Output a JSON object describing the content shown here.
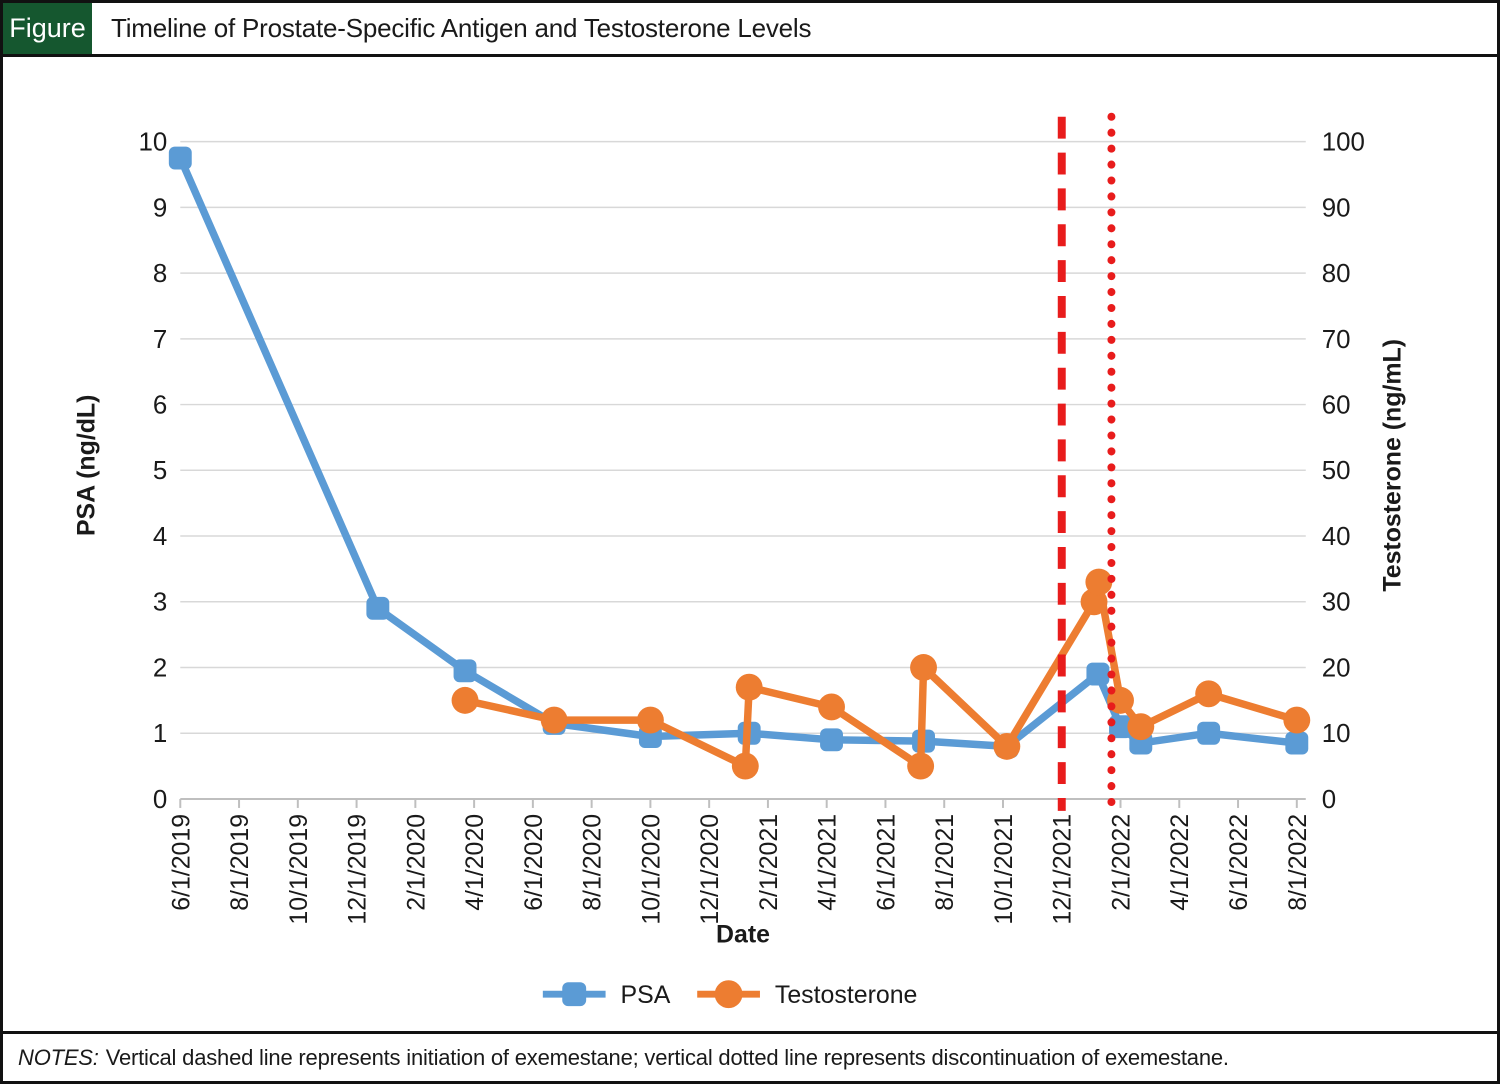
{
  "header": {
    "figure_label": "Figure",
    "title": "Timeline of Prostate-Specific Antigen and Testosterone Levels"
  },
  "notes": {
    "prefix": "NOTES:",
    "text": "Vertical dashed line represents initiation of exemestane; vertical dotted line represents discontinuation of exemestane."
  },
  "colors": {
    "psa": "#5B9BD5",
    "testosterone": "#ED7D31",
    "event_line": "#E81C1C",
    "gridline": "#D8D8D8",
    "axis_line": "#BFBFBF",
    "text": "#1a1a1a",
    "figure_green": "#15572F"
  },
  "chart_data": {
    "type": "line",
    "title": "Timeline of Prostate-Specific Antigen and Testosterone Levels",
    "xlabel": "Date",
    "ylabel_left": "PSA (ng/dL)",
    "ylabel_right": "Testosterone (ng/mL)",
    "ylim_left": [
      0,
      10
    ],
    "ylim_right": [
      0,
      100
    ],
    "y_ticks_left": [
      0,
      1,
      2,
      3,
      4,
      5,
      6,
      7,
      8,
      9,
      10
    ],
    "y_ticks_right": [
      0,
      10,
      20,
      30,
      40,
      50,
      60,
      70,
      80,
      90,
      100
    ],
    "x_ticks": [
      "6/1/2019",
      "8/1/2019",
      "10/1/2019",
      "12/1/2019",
      "2/1/2020",
      "4/1/2020",
      "6/1/2020",
      "8/1/2020",
      "10/1/2020",
      "12/1/2020",
      "2/1/2021",
      "4/1/2021",
      "6/1/2021",
      "8/1/2021",
      "10/1/2021",
      "12/1/2021",
      "2/1/2022",
      "4/1/2022",
      "6/1/2022",
      "8/1/2022"
    ],
    "grid": "horizontal",
    "legend_position": "bottom",
    "series": [
      {
        "name": "PSA",
        "axis": "left",
        "marker": "square",
        "color": "#5B9BD5",
        "points": [
          {
            "date": "6/1/2019",
            "value": 9.75
          },
          {
            "date": "12/23/2019",
            "value": 2.9
          },
          {
            "date": "3/22/2020",
            "value": 1.95
          },
          {
            "date": "6/23/2020",
            "value": 1.15
          },
          {
            "date": "10/1/2020",
            "value": 0.95
          },
          {
            "date": "1/12/2021",
            "value": 1.0
          },
          {
            "date": "4/6/2021",
            "value": 0.9
          },
          {
            "date": "7/10/2021",
            "value": 0.88
          },
          {
            "date": "10/5/2021",
            "value": 0.8
          },
          {
            "date": "1/8/2022",
            "value": 1.9
          },
          {
            "date": "2/1/2022",
            "value": 1.1
          },
          {
            "date": "2/22/2022",
            "value": 0.85
          },
          {
            "date": "5/1/2022",
            "value": 1.0
          },
          {
            "date": "8/1/2022",
            "value": 0.85
          }
        ]
      },
      {
        "name": "Testosterone",
        "axis": "right",
        "marker": "circle",
        "color": "#ED7D31",
        "points": [
          {
            "date": "3/22/2020",
            "value": 15
          },
          {
            "date": "6/23/2020",
            "value": 12
          },
          {
            "date": "10/1/2020",
            "value": 12
          },
          {
            "date": "1/8/2021",
            "value": 5
          },
          {
            "date": "1/12/2021",
            "value": 17
          },
          {
            "date": "4/6/2021",
            "value": 14
          },
          {
            "date": "7/7/2021",
            "value": 5
          },
          {
            "date": "7/10/2021",
            "value": 20
          },
          {
            "date": "10/5/2021",
            "value": 8
          },
          {
            "date": "1/4/2022",
            "value": 30
          },
          {
            "date": "1/9/2022",
            "value": 33
          },
          {
            "date": "2/1/2022",
            "value": 15
          },
          {
            "date": "2/22/2022",
            "value": 11
          },
          {
            "date": "5/1/2022",
            "value": 16
          },
          {
            "date": "8/1/2022",
            "value": 12
          }
        ]
      }
    ],
    "annotations": [
      {
        "type": "vline",
        "style": "dashed",
        "date": "12/1/2021",
        "color": "#E81C1C",
        "label": "initiation of exemestane"
      },
      {
        "type": "vline",
        "style": "dotted",
        "date": "1/22/2022",
        "color": "#E81C1C",
        "label": "discontinuation of exemestane"
      }
    ]
  }
}
